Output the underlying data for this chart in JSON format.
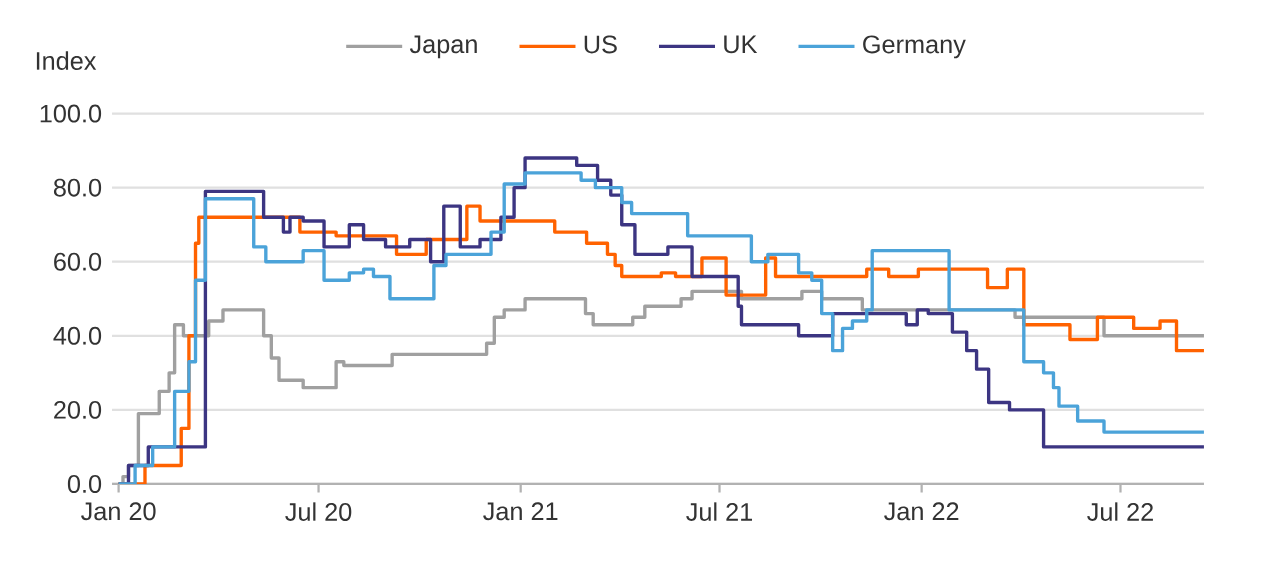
{
  "chart_data": {
    "type": "step",
    "ylabel": "Index",
    "legend": "top",
    "grid": "y",
    "xlim": [
      "2019-12-26",
      "2022-09-15"
    ],
    "ylim": [
      0,
      100
    ],
    "xticks": [
      {
        "value": "2020-01-01",
        "label": "Jan 20"
      },
      {
        "value": "2020-07-01",
        "label": "Jul 20"
      },
      {
        "value": "2021-01-01",
        "label": "Jan 21"
      },
      {
        "value": "2021-07-01",
        "label": "Jul 21"
      },
      {
        "value": "2022-01-01",
        "label": "Jan 22"
      },
      {
        "value": "2022-07-01",
        "label": "Jul 22"
      }
    ],
    "yticks": [
      {
        "value": 0,
        "label": "0.0"
      },
      {
        "value": 20,
        "label": "20.0"
      },
      {
        "value": 40,
        "label": "40.0"
      },
      {
        "value": 60,
        "label": "60.0"
      },
      {
        "value": 80,
        "label": "80.0"
      },
      {
        "value": 100,
        "label": "100.0"
      }
    ],
    "series": [
      {
        "name": "Japan",
        "color": "#a0a0a0",
        "x": [
          "2020-01-01",
          "2020-01-05",
          "2020-01-10",
          "2020-01-19",
          "2020-02-07",
          "2020-02-16",
          "2020-02-21",
          "2020-02-29",
          "2020-03-23",
          "2020-04-05",
          "2020-05-12",
          "2020-05-19",
          "2020-05-26",
          "2020-06-17",
          "2020-07-17",
          "2020-07-24",
          "2020-09-06",
          "2020-12-01",
          "2020-12-08",
          "2020-12-17",
          "2021-01-05",
          "2021-03-01",
          "2021-03-08",
          "2021-04-13",
          "2021-04-24",
          "2021-05-27",
          "2021-06-06",
          "2021-07-21",
          "2021-09-14",
          "2021-10-02",
          "2021-11-08",
          "2022-03-27",
          "2022-06-16",
          "2022-09-15"
        ],
        "values": [
          0,
          2,
          5,
          19,
          25,
          30,
          43,
          40,
          44,
          47,
          40,
          34,
          28,
          26,
          33,
          32,
          35,
          38,
          45,
          47,
          50,
          46,
          43,
          45,
          48,
          50,
          52,
          50,
          52,
          50,
          47,
          45,
          40,
          40
        ]
      },
      {
        "name": "US",
        "color": "#ff6200",
        "x": [
          "2020-01-01",
          "2020-01-25",
          "2020-02-27",
          "2020-03-05",
          "2020-03-11",
          "2020-03-14",
          "2020-06-14",
          "2020-07-17",
          "2020-09-10",
          "2020-10-07",
          "2020-11-13",
          "2020-11-25",
          "2021-02-01",
          "2021-03-02",
          "2021-03-21",
          "2021-03-28",
          "2021-04-03",
          "2021-05-09",
          "2021-05-22",
          "2021-06-15",
          "2021-07-07",
          "2021-08-12",
          "2021-08-21",
          "2021-11-12",
          "2021-12-02",
          "2021-12-29",
          "2022-03-02",
          "2022-03-20",
          "2022-04-04",
          "2022-05-16",
          "2022-06-10",
          "2022-07-13",
          "2022-08-06",
          "2022-08-21",
          "2022-09-15"
        ],
        "values": [
          0,
          5,
          15,
          40,
          65,
          72,
          68,
          67,
          62,
          66,
          75,
          71,
          68,
          65,
          62,
          59,
          56,
          57,
          56,
          61,
          51,
          61,
          56,
          58,
          56,
          58,
          53,
          58,
          43,
          39,
          45,
          42,
          44,
          36,
          36
        ]
      },
      {
        "name": "UK",
        "color": "#3c3582",
        "x": [
          "2020-01-01",
          "2020-01-10",
          "2020-01-28",
          "2020-03-09",
          "2020-03-20",
          "2020-05-12",
          "2020-05-30",
          "2020-06-05",
          "2020-06-17",
          "2020-07-06",
          "2020-07-29",
          "2020-08-11",
          "2020-08-31",
          "2020-09-22",
          "2020-10-11",
          "2020-10-23",
          "2020-11-07",
          "2020-11-25",
          "2020-12-14",
          "2020-12-26",
          "2021-01-05",
          "2021-02-21",
          "2021-03-12",
          "2021-03-24",
          "2021-04-03",
          "2021-04-15",
          "2021-05-15",
          "2021-06-06",
          "2021-07-18",
          "2021-07-21",
          "2021-09-11",
          "2021-10-12",
          "2021-12-18",
          "2021-12-28",
          "2022-01-07",
          "2022-01-29",
          "2022-02-11",
          "2022-02-20",
          "2022-03-03",
          "2022-03-22",
          "2022-04-22",
          "2022-09-15"
        ],
        "values": [
          0,
          5,
          10,
          10,
          79,
          72,
          68,
          72,
          71,
          64,
          70,
          66,
          64,
          66,
          60,
          75,
          64,
          66,
          72,
          80,
          88,
          86,
          82,
          78,
          70,
          62,
          64,
          56,
          48,
          43,
          40,
          46,
          43,
          47,
          46,
          41,
          36,
          31,
          22,
          20,
          10,
          10
        ]
      },
      {
        "name": "Germany",
        "color": "#4ba3d9",
        "x": [
          "2020-01-01",
          "2020-01-16",
          "2020-02-01",
          "2020-02-21",
          "2020-03-05",
          "2020-03-11",
          "2020-03-20",
          "2020-05-03",
          "2020-05-14",
          "2020-06-17",
          "2020-07-06",
          "2020-07-29",
          "2020-08-11",
          "2020-08-20",
          "2020-09-04",
          "2020-10-14",
          "2020-10-25",
          "2020-12-05",
          "2020-12-17",
          "2021-01-05",
          "2021-02-25",
          "2021-03-10",
          "2021-04-03",
          "2021-04-12",
          "2021-06-02",
          "2021-07-30",
          "2021-08-14",
          "2021-09-11",
          "2021-09-23",
          "2021-10-02",
          "2021-10-12",
          "2021-10-21",
          "2021-10-30",
          "2021-11-12",
          "2021-11-17",
          "2022-01-26",
          "2022-04-04",
          "2022-04-22",
          "2022-05-01",
          "2022-05-06",
          "2022-05-23",
          "2022-06-16",
          "2022-09-15"
        ],
        "values": [
          0,
          5,
          10,
          25,
          33,
          55,
          77,
          64,
          60,
          63,
          55,
          57,
          58,
          56,
          50,
          59,
          62,
          68,
          81,
          84,
          82,
          80,
          76,
          73,
          67,
          60,
          62,
          57,
          55,
          46,
          36,
          42,
          44,
          47,
          63,
          47,
          33,
          30,
          26,
          21,
          17,
          14,
          14
        ]
      }
    ]
  }
}
